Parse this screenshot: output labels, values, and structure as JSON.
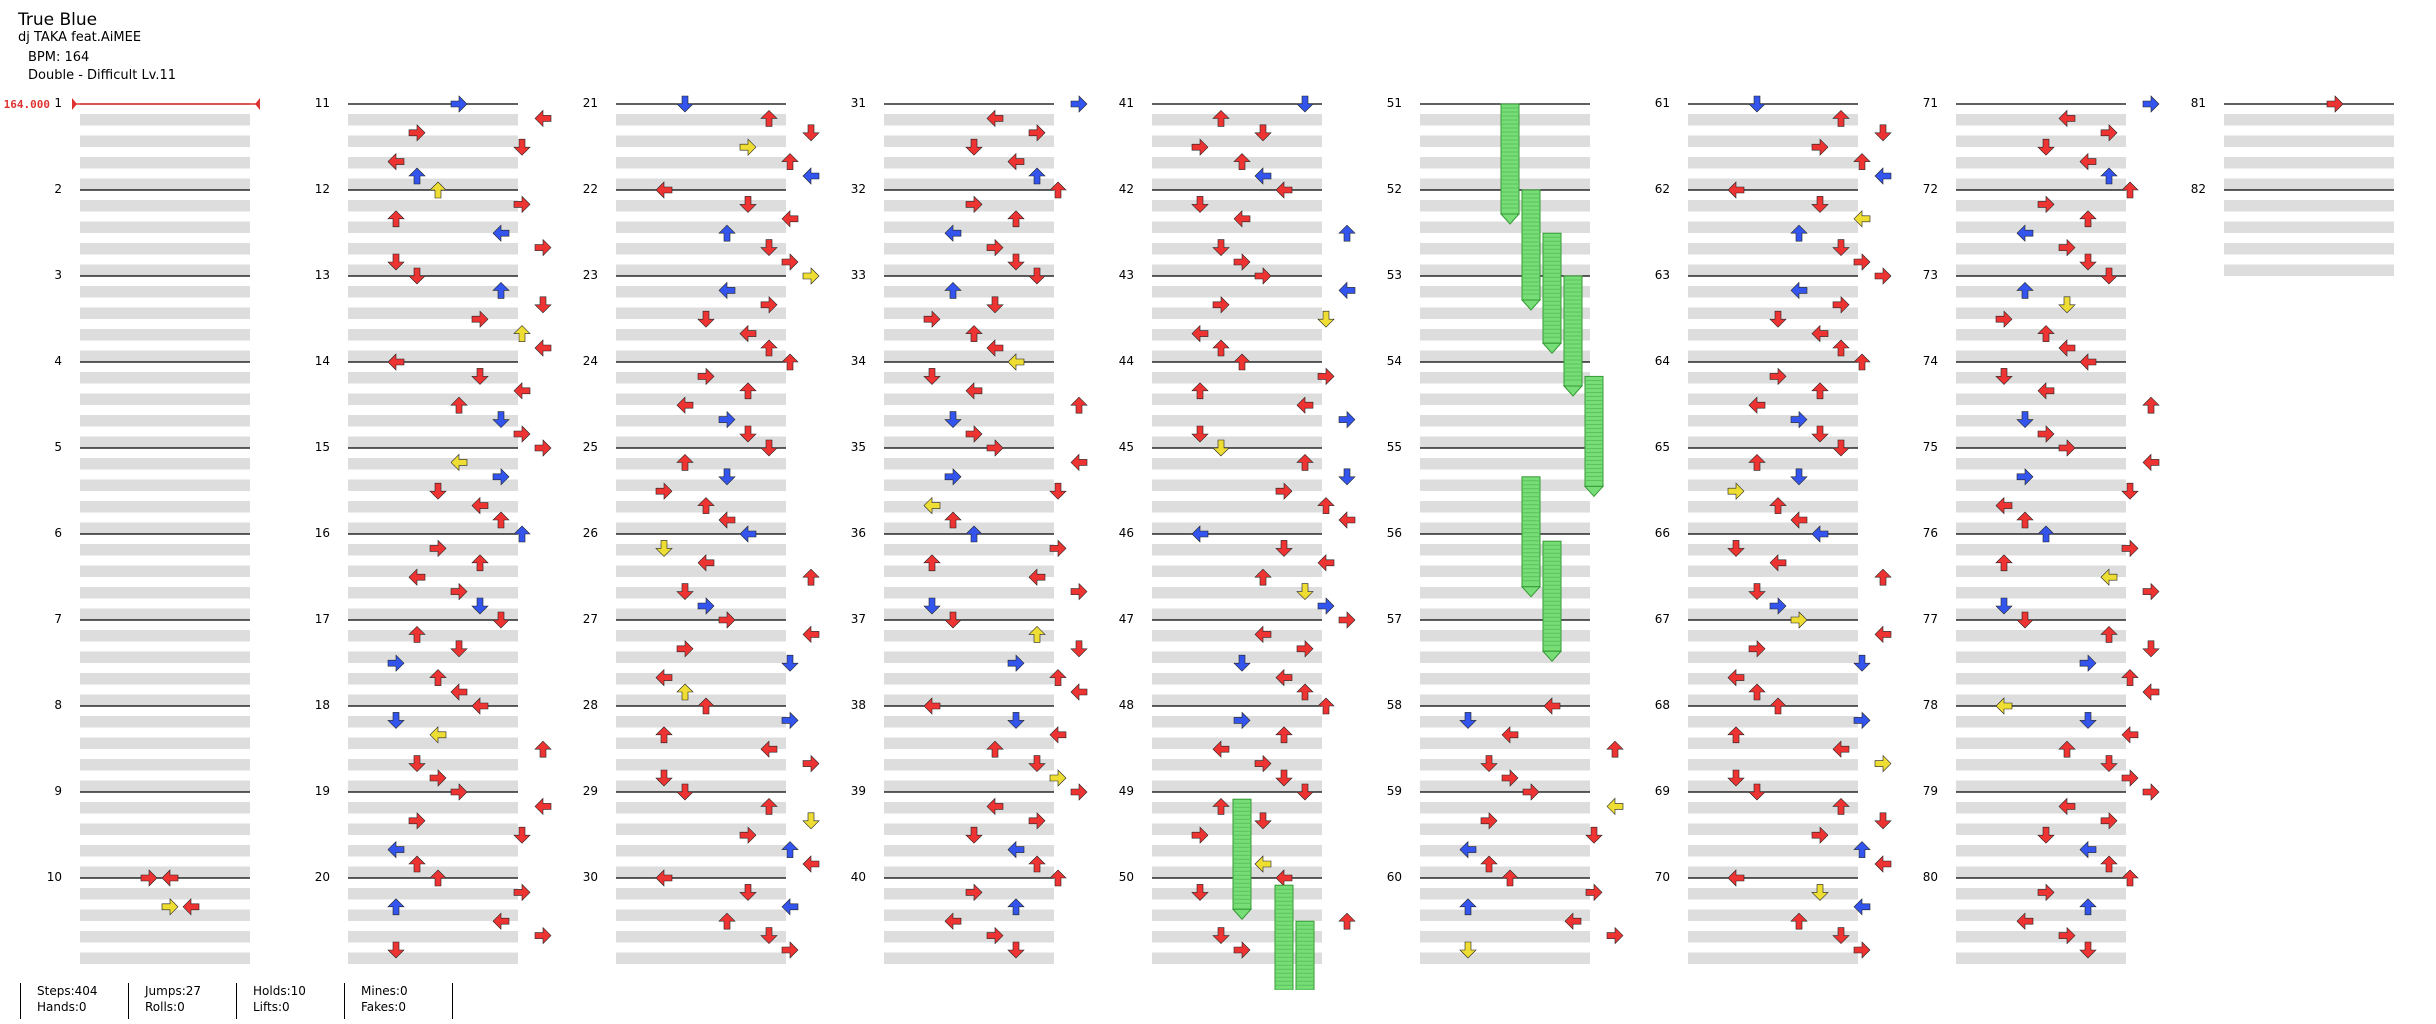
{
  "song": {
    "title": "True Blue",
    "artist": "dj TAKA feat.AiMEE",
    "bpm_label": "BPM: 164",
    "difficulty_label": "Double - Difficult  Lv.11"
  },
  "bpm_marker": "164.000",
  "colors": {
    "red": "#ee3333",
    "blue": "#3355ee",
    "yellow": "#eedd33",
    "hold": "#77dd77",
    "stripe": "#dddddd",
    "bpm": "#dd3333"
  },
  "measures": [
    1,
    2,
    3,
    4,
    5,
    6,
    7,
    8,
    9,
    10,
    11,
    12,
    13,
    14,
    15,
    16,
    17,
    18,
    19,
    20,
    21,
    22,
    23,
    24,
    25,
    26,
    27,
    28,
    29,
    30,
    31,
    32,
    33,
    34,
    35,
    36,
    37,
    38,
    39,
    40,
    41,
    42,
    43,
    44,
    45,
    46,
    47,
    48,
    49,
    50,
    51,
    52,
    53,
    54,
    55,
    56,
    57,
    58,
    59,
    60,
    61,
    62,
    63,
    64,
    65,
    66,
    67,
    68,
    69,
    70,
    71,
    72,
    73,
    74,
    75,
    76,
    77,
    78,
    79,
    80,
    81,
    82
  ],
  "stats": {
    "steps": "Steps:404",
    "hands": "Hands:0",
    "jumps": "Jumps:27",
    "rolls": "Rolls:0",
    "holds": "Holds:10",
    "lifts": "Lifts:0",
    "mines": "Mines:0",
    "fakes": "Fakes:0"
  }
}
